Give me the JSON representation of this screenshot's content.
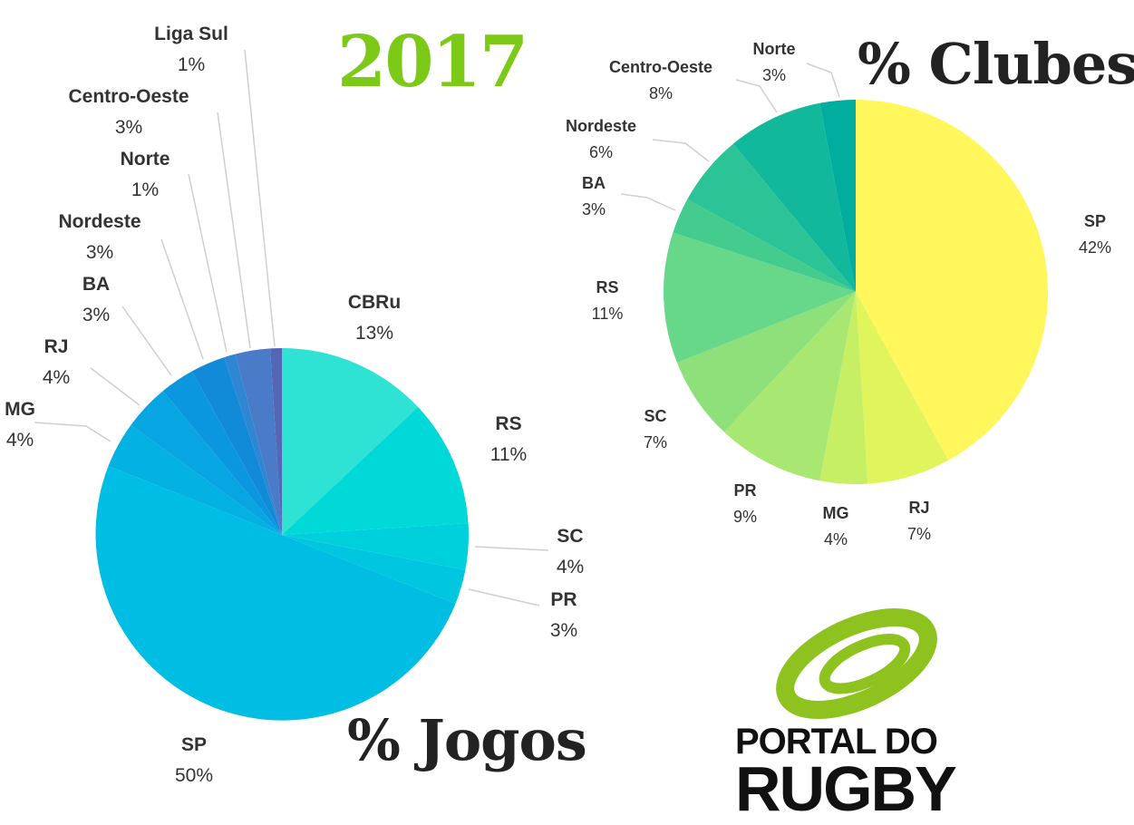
{
  "header": {
    "year": "2017",
    "clubes_title": "% Clubes",
    "jogos_title": "% Jogos"
  },
  "logo": {
    "line1": "PORTAL DO",
    "line2": "RUGBY",
    "ring_color": "#8dc21f"
  },
  "chart_data": [
    {
      "type": "pie",
      "title": "% Jogos",
      "unit": "%",
      "slices": [
        {
          "label": "CBRu",
          "value": 13,
          "display": "13%",
          "color": "#2ee3d3"
        },
        {
          "label": "RS",
          "value": 11,
          "display": "11%",
          "color": "#00d9d8"
        },
        {
          "label": "SC",
          "value": 4,
          "display": "4%",
          "color": "#00cfdc"
        },
        {
          "label": "PR",
          "value": 3,
          "display": "3%",
          "color": "#00c6df"
        },
        {
          "label": "SP",
          "value": 50,
          "display": "50%",
          "color": "#00bde3"
        },
        {
          "label": "MG",
          "value": 4,
          "display": "4%",
          "color": "#03b1e3"
        },
        {
          "label": "RJ",
          "value": 4,
          "display": "4%",
          "color": "#07a5e2"
        },
        {
          "label": "BA",
          "value": 3,
          "display": "3%",
          "color": "#0b97df"
        },
        {
          "label": "Nordeste",
          "value": 3,
          "display": "3%",
          "color": "#118ad8"
        },
        {
          "label": "Norte",
          "value": 1,
          "display": "1%",
          "color": "#2f86d2"
        },
        {
          "label": "Centro-Oeste",
          "value": 3,
          "display": "3%",
          "color": "#4a7bc8"
        },
        {
          "label": "Liga Sul",
          "value": 1,
          "display": "1%",
          "color": "#5566b6"
        }
      ]
    },
    {
      "type": "pie",
      "title": "% Clubes",
      "unit": "%",
      "slices": [
        {
          "label": "SP",
          "value": 42,
          "display": "42%",
          "color": "#fff75b"
        },
        {
          "label": "RJ",
          "value": 7,
          "display": "7%",
          "color": "#e0f45c"
        },
        {
          "label": "MG",
          "value": 4,
          "display": "4%",
          "color": "#c7ef64"
        },
        {
          "label": "PR",
          "value": 9,
          "display": "9%",
          "color": "#a8e872"
        },
        {
          "label": "SC",
          "value": 7,
          "display": "7%",
          "color": "#8ee07b"
        },
        {
          "label": "RS",
          "value": 11,
          "display": "11%",
          "color": "#67d78a"
        },
        {
          "label": "BA",
          "value": 3,
          "display": "3%",
          "color": "#44cc8e"
        },
        {
          "label": "Nordeste",
          "value": 6,
          "display": "6%",
          "color": "#2cc496"
        },
        {
          "label": "Centro-Oeste",
          "value": 8,
          "display": "8%",
          "color": "#11b89c"
        },
        {
          "label": "Norte",
          "value": 3,
          "display": "3%",
          "color": "#00ad9f"
        }
      ]
    }
  ]
}
